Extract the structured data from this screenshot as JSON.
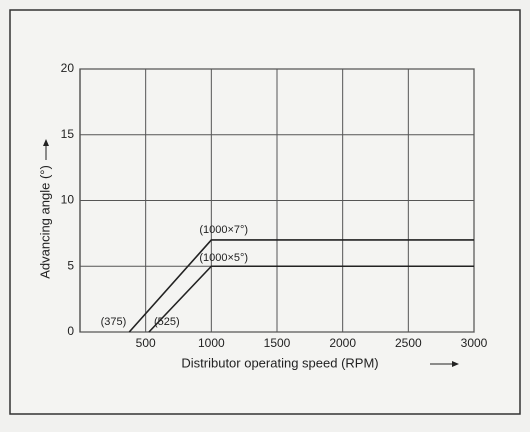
{
  "chart_data": {
    "type": "line",
    "xlabel": "Distributor operating speed (RPM)",
    "ylabel": "Advancing angle (°)",
    "xlim": [
      0,
      3000
    ],
    "xticks": [
      500,
      1000,
      1500,
      2000,
      2500,
      3000
    ],
    "ylim": [
      0,
      20
    ],
    "yticks": [
      0,
      5,
      10,
      15,
      20
    ],
    "grid": true,
    "series": [
      {
        "color": "#222222",
        "x": [
          375,
          1000,
          3000
        ],
        "values": [
          0,
          7,
          7
        ]
      },
      {
        "color": "#222222",
        "x": [
          525,
          1000,
          3000
        ],
        "values": [
          0,
          5,
          5
        ]
      }
    ],
    "annotations": [
      {
        "text": "(375)",
        "x": 375,
        "y": 0
      },
      {
        "text": "(525)",
        "x": 525,
        "y": 0
      },
      {
        "text": "(1000×7°)",
        "x": 1000,
        "y": 7
      },
      {
        "text": "(1000×5°)",
        "x": 1000,
        "y": 5
      }
    ]
  }
}
